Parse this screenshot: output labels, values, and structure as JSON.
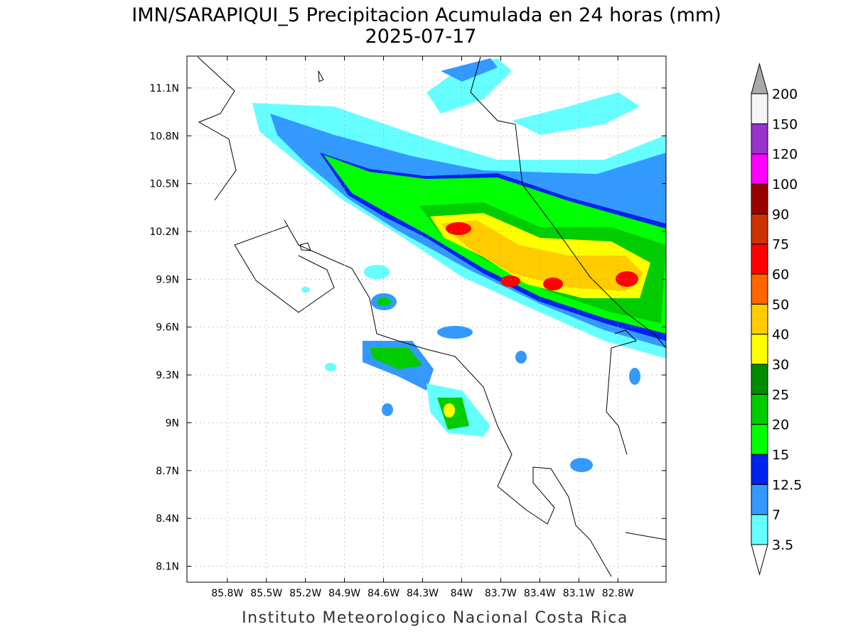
{
  "map": {
    "title": "IMN/SARAPIQUI_5 Precipitacion Acumulada en 24 horas (mm)",
    "subtitle": "2025-07-17",
    "xlim": [
      -86.11,
      -82.43
    ],
    "ylim": [
      8.0,
      11.3
    ],
    "xticks": [
      {
        "value": -85.8,
        "label": "85.8W"
      },
      {
        "value": -85.5,
        "label": "85.5W"
      },
      {
        "value": -85.2,
        "label": "85.2W"
      },
      {
        "value": -84.9,
        "label": "84.9W"
      },
      {
        "value": -84.6,
        "label": "84.6W"
      },
      {
        "value": -84.3,
        "label": "84.3W"
      },
      {
        "value": -84.0,
        "label": "84W"
      },
      {
        "value": -83.7,
        "label": "83.7W"
      },
      {
        "value": -83.4,
        "label": "83.4W"
      },
      {
        "value": -83.1,
        "label": "83.1W"
      },
      {
        "value": -82.8,
        "label": "82.8W"
      }
    ],
    "yticks": [
      {
        "value": 8.1,
        "label": "8.1N"
      },
      {
        "value": 8.4,
        "label": "8.4N"
      },
      {
        "value": 8.7,
        "label": "8.7N"
      },
      {
        "value": 9.0,
        "label": "9N"
      },
      {
        "value": 9.3,
        "label": "9.3N"
      },
      {
        "value": 9.6,
        "label": "9.6N"
      },
      {
        "value": 9.9,
        "label": "9.9N"
      },
      {
        "value": 10.2,
        "label": "10.2N"
      },
      {
        "value": 10.5,
        "label": "10.5N"
      },
      {
        "value": 10.8,
        "label": "10.8N"
      },
      {
        "value": 11.1,
        "label": "11.1N"
      }
    ],
    "grid": true,
    "footer": "Instituto Meteorologico Nacional Costa Rica"
  },
  "colorbar": {
    "levels": [
      3.5,
      7,
      12.5,
      15,
      20,
      25,
      30,
      40,
      50,
      60,
      75,
      90,
      100,
      120,
      150,
      200
    ],
    "colors": [
      "#66ffff",
      "#3399ff",
      "#0022ee",
      "#00ff00",
      "#00cc00",
      "#008c00",
      "#ffff00",
      "#ffcc00",
      "#ff6600",
      "#ff0000",
      "#cc3300",
      "#990000",
      "#ff00ff",
      "#9933cc",
      "#f5f5f5"
    ],
    "under_color": "#ffffff",
    "over_color": "#aaaaaa"
  }
}
